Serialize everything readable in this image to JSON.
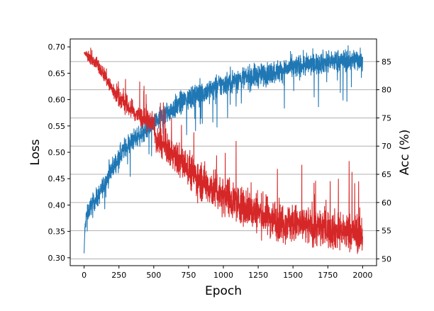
{
  "chart_data": {
    "type": "line",
    "title": "",
    "xlabel": "Epoch",
    "ylabel": "Loss",
    "ylabel_right": "Acc (%)",
    "xlim": [
      -100,
      2100
    ],
    "ylim": [
      0.285,
      0.715
    ],
    "ylim_right": [
      48.8,
      89.0
    ],
    "x_ticks": [
      0,
      250,
      500,
      750,
      1000,
      1250,
      1500,
      1750,
      2000
    ],
    "x_tick_labels": [
      "0",
      "250",
      "500",
      "750",
      "1000",
      "1250",
      "1500",
      "1750",
      "2000"
    ],
    "y_ticks": [
      0.3,
      0.35,
      0.4,
      0.45,
      0.5,
      0.55,
      0.6,
      0.65,
      0.7
    ],
    "y_tick_labels": [
      "0.30",
      "0.35",
      "0.40",
      "0.45",
      "0.50",
      "0.55",
      "0.60",
      "0.65",
      "0.70"
    ],
    "y_ticks_right": [
      50,
      55,
      60,
      65,
      70,
      75,
      80,
      85
    ],
    "y_tick_labels_right": [
      "50",
      "55",
      "60",
      "65",
      "70",
      "75",
      "80",
      "85"
    ],
    "grid": "horizontal, aligned to right axis",
    "legend": null,
    "series": [
      {
        "name": "Loss",
        "axis": "left",
        "color": "#d62728",
        "x": [
          0,
          50,
          100,
          150,
          200,
          250,
          300,
          350,
          400,
          450,
          500,
          520,
          600,
          700,
          750,
          800,
          900,
          1000,
          1100,
          1200,
          1250,
          1300,
          1400,
          1500,
          1600,
          1700,
          1750,
          1800,
          1900,
          2000
        ],
        "values": [
          0.69,
          0.675,
          0.665,
          0.645,
          0.62,
          0.605,
          0.59,
          0.578,
          0.568,
          0.56,
          0.555,
          0.52,
          0.505,
          0.48,
          0.47,
          0.455,
          0.435,
          0.42,
          0.405,
          0.39,
          0.385,
          0.38,
          0.37,
          0.365,
          0.36,
          0.357,
          0.355,
          0.352,
          0.348,
          0.345
        ],
        "noise": [
          0.004,
          0.008,
          0.01,
          0.012,
          0.014,
          0.016,
          0.016,
          0.016,
          0.016,
          0.016,
          0.016,
          0.02,
          0.022,
          0.026,
          0.028,
          0.03,
          0.03,
          0.03,
          0.03,
          0.03,
          0.03,
          0.03,
          0.03,
          0.03,
          0.03,
          0.03,
          0.03,
          0.03,
          0.03,
          0.03
        ]
      },
      {
        "name": "Acc (%)",
        "axis": "right",
        "color": "#1f77b4",
        "x": [
          0,
          5,
          15,
          50,
          100,
          150,
          200,
          250,
          300,
          400,
          500,
          600,
          750,
          900,
          1000,
          1100,
          1250,
          1400,
          1500,
          1600,
          1750,
          1900,
          2000
        ],
        "values": [
          51,
          55,
          57.5,
          59.5,
          61,
          63.5,
          66,
          68,
          70,
          72,
          74,
          76,
          78.5,
          80,
          81,
          81.8,
          82.5,
          83.3,
          84,
          84.4,
          85,
          85.2,
          85.5
        ],
        "noise": [
          0,
          1.0,
          1.2,
          1.3,
          1.4,
          1.5,
          1.5,
          1.5,
          1.5,
          1.5,
          1.5,
          1.6,
          1.7,
          1.7,
          1.7,
          1.7,
          1.7,
          1.6,
          1.6,
          1.6,
          1.6,
          1.6,
          1.6
        ]
      }
    ],
    "n_points": 2000
  },
  "style": {
    "grid_color": "#b0b0b0",
    "axis_color": "#000000",
    "background": "#ffffff"
  }
}
